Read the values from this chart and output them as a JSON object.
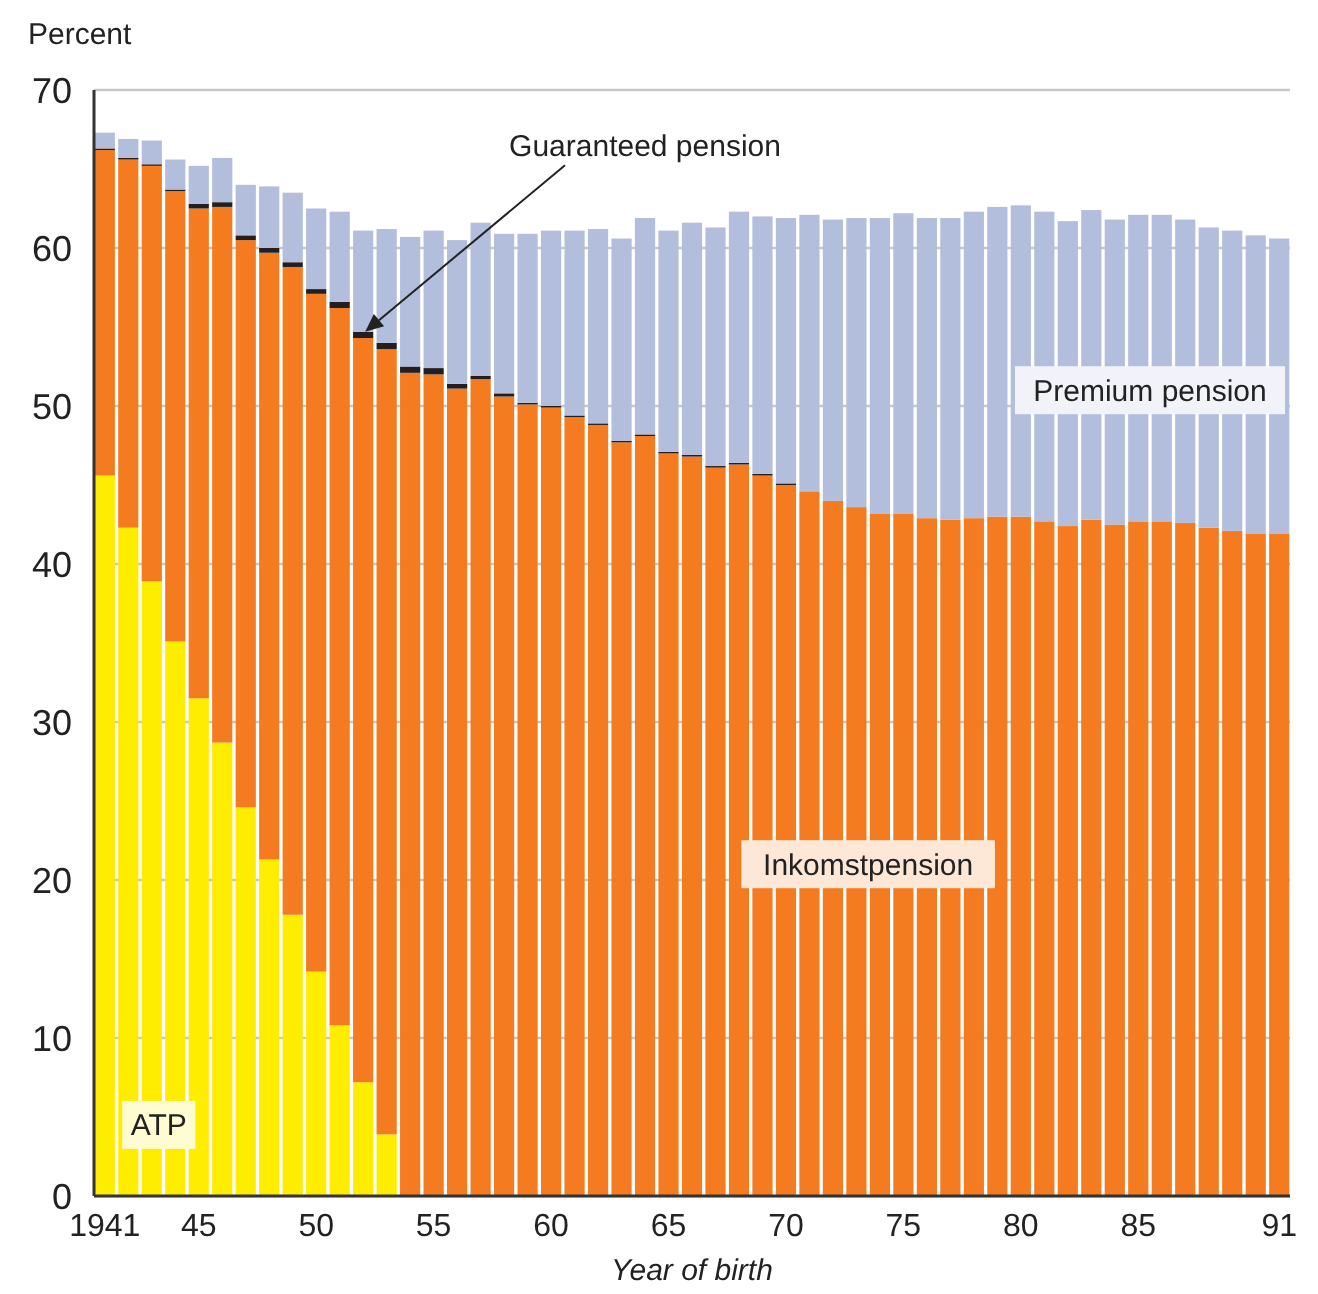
{
  "chart_data": {
    "type": "bar",
    "stacked": true,
    "ylabel": "Percent",
    "xlabel": "Year of birth",
    "categories": [
      "1941",
      null,
      null,
      null,
      "45",
      null,
      null,
      null,
      null,
      "50",
      null,
      null,
      null,
      null,
      "55",
      null,
      null,
      null,
      null,
      "60",
      null,
      null,
      null,
      null,
      "65",
      null,
      null,
      null,
      null,
      "70",
      null,
      null,
      null,
      null,
      "75",
      null,
      null,
      null,
      null,
      "80",
      null,
      null,
      null,
      null,
      "85",
      null,
      null,
      null,
      null,
      null,
      "91"
    ],
    "series": [
      {
        "name": "ATP",
        "color": "#ffed00",
        "values": [
          45.6,
          42.3,
          38.9,
          35.1,
          31.5,
          28.7,
          24.6,
          21.3,
          17.8,
          14.2,
          10.8,
          7.2,
          3.9,
          null,
          null,
          null,
          null,
          null,
          null,
          null,
          null,
          null,
          null,
          null,
          null,
          null,
          null,
          null,
          null,
          null,
          null,
          null,
          null,
          null,
          null,
          null,
          null,
          null,
          null,
          null,
          null,
          null,
          null,
          null,
          null,
          null,
          null,
          null,
          null,
          null,
          null
        ]
      },
      {
        "name": "Inkomstpension",
        "color": "#f47b20",
        "values": [
          20.6,
          23.3,
          26.3,
          28.5,
          31.0,
          33.9,
          35.9,
          38.4,
          41.0,
          42.9,
          45.4,
          47.1,
          49.7,
          52.1,
          52.0,
          51.1,
          51.7,
          50.6,
          50.1,
          49.9,
          49.3,
          48.8,
          47.7,
          48.1,
          47.0,
          46.8,
          46.1,
          46.3,
          45.6,
          45.0,
          44.6,
          44.0,
          43.6,
          43.2,
          43.2,
          42.9,
          42.8,
          42.9,
          43.0,
          43.0,
          42.7,
          42.4,
          42.8,
          42.5,
          42.7,
          42.7,
          42.6,
          42.3,
          42.1,
          41.9,
          41.9
        ]
      },
      {
        "name": "Guaranteed pension",
        "color": "#231f20",
        "values": [
          0.1,
          0.1,
          0.1,
          0.1,
          0.3,
          0.3,
          0.3,
          0.3,
          0.3,
          0.3,
          0.4,
          0.4,
          0.4,
          0.4,
          0.4,
          0.3,
          0.2,
          0.2,
          0.1,
          0.1,
          0.1,
          0.1,
          0.1,
          0.1,
          0.1,
          0.1,
          0.1,
          0.1,
          0.1,
          0.1,
          null,
          null,
          null,
          null,
          null,
          null,
          null,
          null,
          null,
          null,
          null,
          null,
          null,
          null,
          null,
          null,
          null,
          null,
          null,
          null,
          null
        ]
      },
      {
        "name": "Premium pension",
        "color": "#b3bedd",
        "values": [
          1.0,
          1.2,
          1.5,
          1.9,
          2.4,
          2.8,
          3.2,
          3.9,
          4.4,
          5.1,
          5.7,
          6.4,
          7.2,
          8.2,
          8.7,
          9.1,
          9.7,
          10.1,
          10.7,
          11.1,
          11.7,
          12.3,
          12.8,
          13.7,
          14.0,
          14.7,
          15.1,
          15.9,
          16.3,
          16.8,
          17.5,
          17.8,
          18.3,
          18.7,
          19.0,
          19.0,
          19.1,
          19.4,
          19.6,
          19.7,
          19.6,
          19.3,
          19.6,
          19.3,
          19.4,
          19.4,
          19.2,
          19.0,
          19.0,
          18.9,
          18.7
        ]
      }
    ],
    "ylim": [
      0,
      70
    ],
    "yticks": [
      0,
      10,
      20,
      30,
      40,
      50,
      60,
      70
    ],
    "grid": "y"
  }
}
